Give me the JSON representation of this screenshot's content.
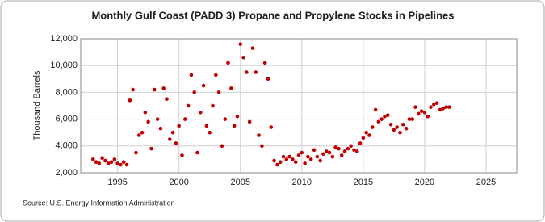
{
  "chart_data": {
    "type": "scatter",
    "title": "Monthly Gulf Coast (PADD 3) Propane and Propylene Stocks in Pipelines",
    "y_label": "Thousand Barrels",
    "source": "Source: U.S. Energy Information Administration",
    "color": "#c00000",
    "grid": true,
    "xlim": [
      1992,
      2027.5
    ],
    "xticks": [
      1995,
      2000,
      2005,
      2010,
      2015,
      2020,
      2025
    ],
    "ylim": [
      2000,
      12000
    ],
    "yticks": [
      {
        "value": 2000,
        "label": "2,000"
      },
      {
        "value": 4000,
        "label": "4,000"
      },
      {
        "value": 6000,
        "label": "6,000"
      },
      {
        "value": 8000,
        "label": "8,000"
      },
      {
        "value": 10000,
        "label": "10,000"
      },
      {
        "value": 12000,
        "label": "12,000"
      }
    ],
    "x": [
      1993,
      1993.25,
      1993.5,
      1993.75,
      1994,
      1994.25,
      1994.5,
      1994.75,
      1995,
      1995.25,
      1995.5,
      1995.75,
      1996,
      1996.25,
      1996.5,
      1996.75,
      1997,
      1997.25,
      1997.5,
      1997.75,
      1998,
      1998.25,
      1998.5,
      1998.75,
      1999,
      1999.25,
      1999.5,
      1999.75,
      2000,
      2000.25,
      2000.5,
      2000.75,
      2001,
      2001.25,
      2001.5,
      2001.75,
      2002,
      2002.25,
      2002.5,
      2002.75,
      2003,
      2003.25,
      2003.5,
      2003.75,
      2004,
      2004.25,
      2004.5,
      2004.75,
      2005,
      2005.25,
      2005.5,
      2005.75,
      2006,
      2006.25,
      2006.5,
      2006.75,
      2007,
      2007.25,
      2007.5,
      2007.75,
      2008,
      2008.25,
      2008.5,
      2008.75,
      2009,
      2009.25,
      2009.5,
      2009.75,
      2010,
      2010.25,
      2010.5,
      2010.75,
      2011,
      2011.25,
      2011.5,
      2011.75,
      2012,
      2012.25,
      2012.5,
      2012.75,
      2013,
      2013.25,
      2013.5,
      2013.75,
      2014,
      2014.25,
      2014.5,
      2014.75,
      2015,
      2015.25,
      2015.5,
      2015.75,
      2016,
      2016.25,
      2016.5,
      2016.75,
      2017,
      2017.25,
      2017.5,
      2017.75,
      2018,
      2018.25,
      2018.5,
      2018.75,
      2019,
      2019.25,
      2019.5,
      2019.75,
      2020,
      2020.25,
      2020.5,
      2020.75,
      2021,
      2021.25,
      2021.5,
      2021.75,
      2022
    ],
    "values": [
      3000,
      2800,
      2700,
      3100,
      2900,
      2700,
      2800,
      3000,
      2700,
      2600,
      2800,
      2600,
      7400,
      8200,
      3500,
      4800,
      5000,
      6500,
      5800,
      3800,
      8200,
      6000,
      5300,
      8300,
      7500,
      4500,
      5000,
      4200,
      5500,
      3300,
      6000,
      7000,
      9300,
      8000,
      3500,
      6500,
      8500,
      5500,
      5000,
      7000,
      9300,
      8000,
      4000,
      6000,
      10200,
      8300,
      5500,
      6200,
      11600,
      10600,
      9500,
      5800,
      11300,
      9500,
      4800,
      4000,
      10200,
      9000,
      5400,
      2900,
      2600,
      2800,
      3200,
      3000,
      3200,
      3000,
      2800,
      3300,
      3500,
      2700,
      3200,
      3000,
      3700,
      3200,
      2900,
      3400,
      3600,
      3500,
      3200,
      3900,
      3800,
      3300,
      3600,
      3800,
      4000,
      3700,
      3600,
      4200,
      4600,
      5000,
      4800,
      5400,
      6700,
      5800,
      6000,
      6200,
      6300,
      5600,
      5200,
      5400,
      5000,
      5600,
      5300,
      6000,
      6000,
      6900,
      6400,
      6600,
      6500,
      6200,
      6900,
      7100,
      7200,
      6700,
      6800,
      6900,
      6900
    ]
  }
}
